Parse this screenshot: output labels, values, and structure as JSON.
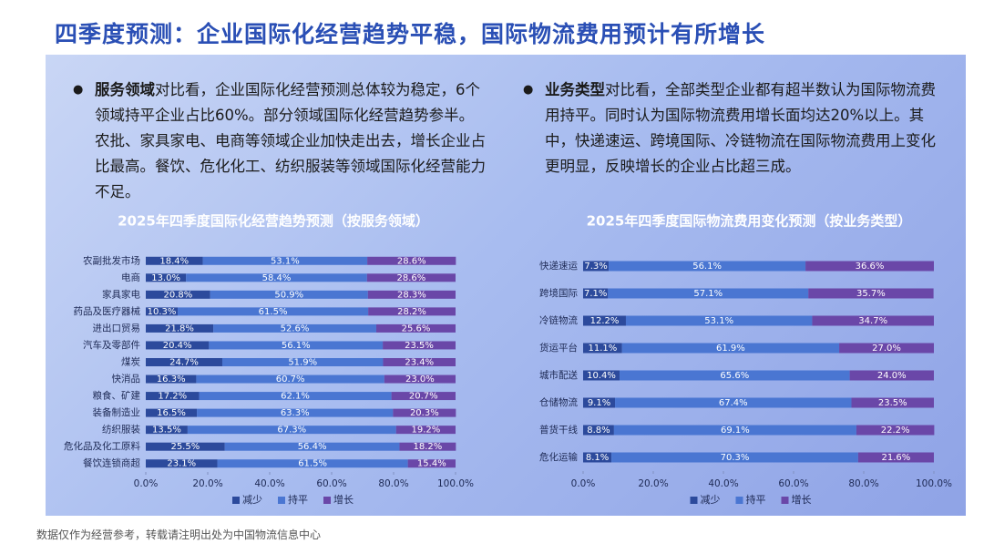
{
  "title": "四季度预测：企业国际化经营趋势平稳，国际物流费用预计有所增长",
  "bullets": [
    {
      "lead": "服务领域",
      "text": "对比看，企业国际化经营预测总体较为稳定，6个领域持平企业占比60%。部分领域国际化经营趋势参半。农批、家具家电、电商等领域企业加快走出去，增长企业占比最高。餐饮、危化化工、纺织服装等领域国际化经营能力不足。"
    },
    {
      "lead": "业务类型",
      "text": "对比看，全部类型企业都有超半数认为国际物流费用持平。同时认为国际物流费用增长面均达20%以上。其中，快递速运、跨境国际、冷链物流在国际物流费用上变化更明显，反映增长的企业占比超三成。"
    }
  ],
  "footer": "数据仅作为经营参考，转载请注明出处为中国物流信息中心",
  "chart_data": [
    {
      "type": "stacked_hbar",
      "title": "2025年四季度国际化经营趋势预测（按服务领域）",
      "categories": [
        "农副批发市场",
        "电商",
        "家具家电",
        "药品及医疗器械",
        "进出口贸易",
        "汽车及零部件",
        "煤炭",
        "快消品",
        "粮食、矿建",
        "装备制造业",
        "纺织服装",
        "危化品及化工原料",
        "餐饮连锁商超"
      ],
      "series": [
        {
          "name": "减少",
          "color": "#2c4a9c",
          "values": [
            18.4,
            13.0,
            20.8,
            10.3,
            21.8,
            20.4,
            24.7,
            16.3,
            17.2,
            16.5,
            13.5,
            25.5,
            23.1
          ],
          "value_labels": [
            "18.4%",
            "13.0%",
            "20.8%",
            "10.3%",
            "21.8%",
            "20.4%",
            "24.7%",
            "16.3%",
            "17.2%",
            "16.5%",
            "13.5%",
            "25.5%",
            "23.1%"
          ]
        },
        {
          "name": "持平",
          "color": "#4a76d2",
          "values": [
            53.1,
            58.4,
            50.9,
            61.5,
            52.6,
            56.1,
            51.9,
            60.7,
            62.1,
            63.3,
            67.3,
            56.4,
            61.5
          ],
          "value_labels": [
            "53.1%",
            "58.4%",
            "50.9%",
            "61.5%",
            "52.6%",
            "56.1%",
            "51.9%",
            "60.7%",
            "62.1%",
            "63.3%",
            "67.3%",
            "56.4%",
            "61.5%"
          ]
        },
        {
          "name": "增长",
          "color": "#6a47a8",
          "values": [
            28.6,
            28.6,
            28.3,
            28.2,
            25.6,
            23.5,
            23.4,
            23.0,
            20.7,
            20.3,
            19.2,
            18.2,
            15.4
          ],
          "value_labels": [
            "28.6%",
            "28.6%",
            "28.3%",
            "28.2%",
            "25.6%",
            "23.5%",
            "23.4%",
            "23.0%",
            "20.7%",
            "20.3%",
            "19.2%",
            "18.2%",
            "15.4%"
          ]
        }
      ],
      "xlim": [
        0,
        100
      ],
      "xticks": [
        {
          "value": 0,
          "label": "0.0%"
        },
        {
          "value": 20,
          "label": "20.0%"
        },
        {
          "value": 40,
          "label": "40.0%"
        },
        {
          "value": 60,
          "label": "60.0%"
        },
        {
          "value": 80,
          "label": "80.0%"
        },
        {
          "value": 100,
          "label": "100.0%"
        }
      ],
      "legend": "bottom"
    },
    {
      "type": "stacked_hbar",
      "title": "2025年四季度国际物流费用变化预测（按业务类型）",
      "categories": [
        "快递速运",
        "跨境国际",
        "冷链物流",
        "货运平台",
        "城市配送",
        "仓储物流",
        "普货干线",
        "危化运输"
      ],
      "series": [
        {
          "name": "减少",
          "color": "#2c4a9c",
          "values": [
            7.3,
            7.1,
            12.2,
            11.1,
            10.4,
            9.1,
            8.8,
            8.1
          ],
          "value_labels": [
            "7.3%",
            "7.1%",
            "12.2%",
            "11.1%",
            "10.4%",
            "9.1%",
            "8.8%",
            "8.1%"
          ]
        },
        {
          "name": "持平",
          "color": "#4a76d2",
          "values": [
            56.1,
            57.1,
            53.1,
            61.9,
            65.6,
            67.4,
            69.1,
            70.3
          ],
          "value_labels": [
            "56.1%",
            "57.1%",
            "53.1%",
            "61.9%",
            "65.6%",
            "67.4%",
            "69.1%",
            "70.3%"
          ]
        },
        {
          "name": "增长",
          "color": "#6a47a8",
          "values": [
            36.6,
            35.7,
            34.7,
            27.0,
            24.0,
            23.5,
            22.2,
            21.6
          ],
          "value_labels": [
            "36.6%",
            "35.7%",
            "34.7%",
            "27.0%",
            "24.0%",
            "23.5%",
            "22.2%",
            "21.6%"
          ]
        }
      ],
      "xlim": [
        0,
        100
      ],
      "xticks": [
        {
          "value": 0,
          "label": "0.0%"
        },
        {
          "value": 20,
          "label": "20.0%"
        },
        {
          "value": 40,
          "label": "40.0%"
        },
        {
          "value": 60,
          "label": "60.0%"
        },
        {
          "value": 80,
          "label": "80.0%"
        },
        {
          "value": 100,
          "label": "100.0%"
        }
      ],
      "legend": "bottom"
    }
  ]
}
